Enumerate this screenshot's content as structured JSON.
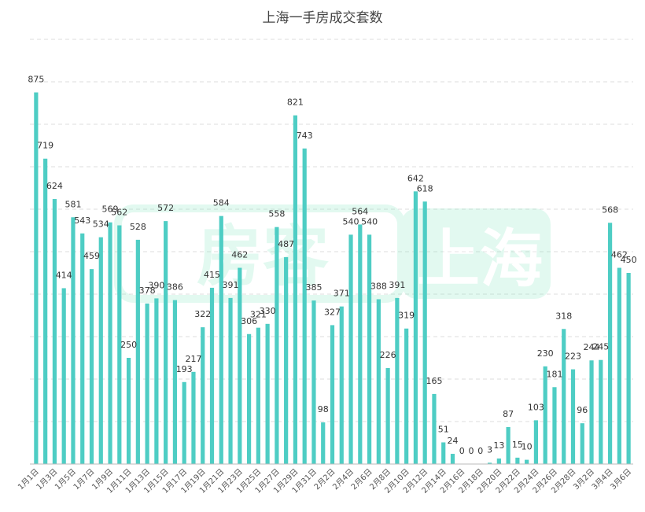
{
  "colors": {
    "bar": "#4ECDC4",
    "grid": "#dddddd",
    "axis": "#bbbbbb",
    "watermark": "#7fe6c0"
  },
  "chart_data": {
    "type": "bar",
    "title": "上海一手房成交套数",
    "xlabel": "",
    "ylabel": "",
    "ylim": [
      0,
      1000
    ],
    "grid": true,
    "categories": [
      "1月1日",
      "1月2日",
      "1月3日",
      "1月4日",
      "1月5日",
      "1月6日",
      "1月7日",
      "1月8日",
      "1月9日",
      "1月10日",
      "1月11日",
      "1月12日",
      "1月13日",
      "1月14日",
      "1月15日",
      "1月16日",
      "1月17日",
      "1月18日",
      "1月19日",
      "1月20日",
      "1月21日",
      "1月22日",
      "1月23日",
      "1月24日",
      "1月25日",
      "1月26日",
      "1月27日",
      "1月28日",
      "1月29日",
      "1月30日",
      "1月31日",
      "2月1日",
      "2月2日",
      "2月3日",
      "2月4日",
      "2月5日",
      "2月6日",
      "2月7日",
      "2月8日",
      "2月9日",
      "2月10日",
      "2月11日",
      "2月12日",
      "2月13日",
      "2月14日",
      "2月15日",
      "2月16日",
      "2月17日",
      "2月18日",
      "2月19日",
      "2月20日",
      "2月21日",
      "2月22日",
      "2月23日",
      "2月24日",
      "2月25日",
      "2月26日",
      "2月27日",
      "2月28日",
      "3月1日",
      "3月2日",
      "3月3日",
      "3月4日",
      "3月5日",
      "3月6日"
    ],
    "tick_labels": [
      "1月1日",
      "",
      "1月3日",
      "",
      "1月5日",
      "",
      "1月7日",
      "",
      "1月9日",
      "",
      "1月11日",
      "",
      "1月13日",
      "",
      "1月15日",
      "",
      "1月17日",
      "",
      "1月19日",
      "",
      "1月21日",
      "",
      "1月23日",
      "",
      "1月25日",
      "",
      "1月27日",
      "",
      "1月29日",
      "",
      "1月31日",
      "",
      "2月2日",
      "",
      "2月4日",
      "",
      "2月6日",
      "",
      "2月8日",
      "",
      "2月10日",
      "",
      "2月12日",
      "",
      "2月14日",
      "",
      "2月16日",
      "",
      "2月18日",
      "",
      "2月20日",
      "",
      "2月22日",
      "",
      "2月24日",
      "",
      "2月26日",
      "",
      "2月28日",
      "",
      "3月2日",
      "",
      "3月4日",
      "",
      "3月6日"
    ],
    "values": [
      875,
      719,
      624,
      414,
      581,
      543,
      459,
      534,
      569,
      562,
      250,
      528,
      378,
      390,
      572,
      386,
      193,
      217,
      322,
      415,
      584,
      391,
      462,
      306,
      321,
      330,
      558,
      487,
      821,
      743,
      385,
      98,
      327,
      371,
      540,
      564,
      540,
      388,
      226,
      391,
      319,
      642,
      618,
      165,
      51,
      24,
      0,
      0,
      0,
      3,
      13,
      87,
      15,
      10,
      103,
      230,
      181,
      318,
      223,
      96,
      244,
      245,
      568,
      462,
      450
    ]
  },
  "watermark": {
    "left": "房客",
    "right": "上海"
  }
}
